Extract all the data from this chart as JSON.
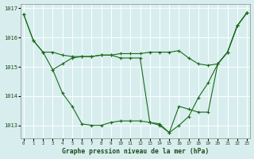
{
  "title": "Graphe pression niveau de la mer (hPa)",
  "bg_color": "#d8eeee",
  "grid_color": "#ffffff",
  "line_color": "#1a6b1a",
  "xlim": [
    -0.3,
    23.3
  ],
  "ylim": [
    1012.55,
    1017.15
  ],
  "yticks": [
    1013,
    1014,
    1015,
    1016,
    1017
  ],
  "xticks": [
    0,
    1,
    2,
    3,
    4,
    5,
    6,
    7,
    8,
    9,
    10,
    11,
    12,
    13,
    14,
    15,
    16,
    17,
    18,
    19,
    20,
    21,
    22,
    23
  ],
  "line1_x": [
    0,
    1,
    2,
    3,
    4,
    5,
    6,
    7,
    8,
    9,
    10,
    11,
    12,
    13,
    14,
    15,
    16,
    17,
    18,
    19,
    20,
    21,
    22,
    23
  ],
  "line1_y": [
    1016.8,
    1015.9,
    1015.5,
    1015.5,
    1015.4,
    1015.35,
    1015.35,
    1015.35,
    1015.4,
    1015.4,
    1015.45,
    1015.45,
    1015.45,
    1015.5,
    1015.5,
    1015.5,
    1015.55,
    1015.3,
    1015.1,
    1015.05,
    1015.1,
    1015.5,
    1016.4,
    1016.85
  ],
  "line2_x": [
    0,
    1,
    2,
    3,
    4,
    5,
    6,
    7,
    8,
    9,
    10,
    11,
    12,
    13,
    14,
    15,
    16,
    17,
    18,
    19,
    20,
    21,
    22,
    23
  ],
  "line2_y": [
    1016.8,
    1015.9,
    1015.5,
    1014.9,
    1014.1,
    1013.65,
    1013.05,
    1013.0,
    1013.0,
    1013.1,
    1013.15,
    1013.15,
    1013.15,
    1013.1,
    1013.0,
    1012.75,
    1013.0,
    1013.3,
    1013.95,
    1014.45,
    1015.1,
    1015.5,
    1016.4,
    1016.85
  ],
  "line3_x": [
    3,
    4,
    5,
    6,
    7,
    8,
    9,
    10,
    11,
    12,
    13,
    14,
    15,
    16,
    17,
    18,
    19,
    20,
    21,
    22,
    23
  ],
  "line3_y": [
    1014.9,
    1015.1,
    1015.3,
    1015.35,
    1015.35,
    1015.4,
    1015.4,
    1015.3,
    1015.3,
    1015.3,
    1013.1,
    1013.05,
    1012.75,
    1013.65,
    1013.55,
    1013.45,
    1013.45,
    1015.1,
    1015.5,
    1016.4,
    1016.85
  ]
}
